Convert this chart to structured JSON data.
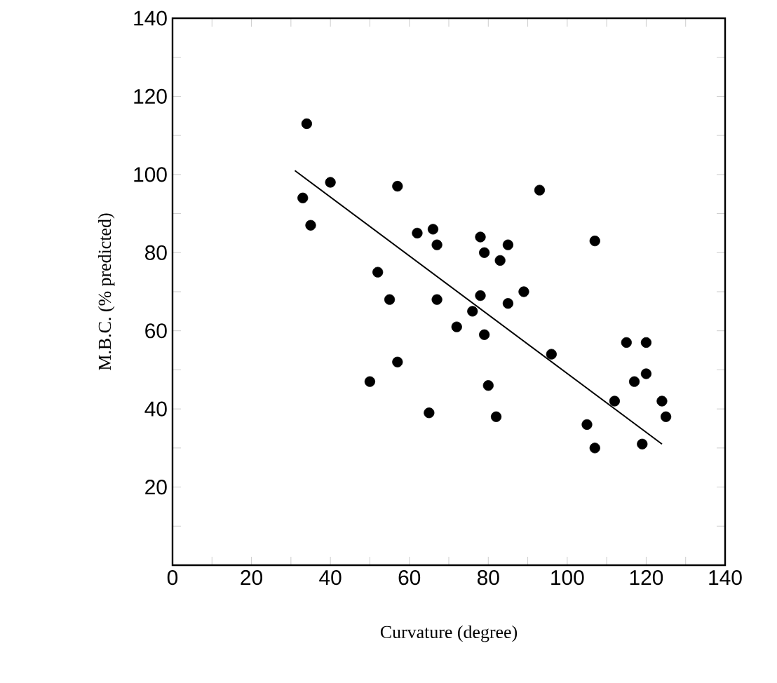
{
  "chart_data": {
    "type": "scatter",
    "xlabel": "Curvature (degree)",
    "ylabel": "M.B.C. (% predicted)",
    "xlim": [
      0,
      140
    ],
    "ylim": [
      0,
      140
    ],
    "xticks": [
      0,
      {
        "value": 10,
        "label": null
      },
      20,
      {
        "value": 30,
        "label": null
      },
      40,
      {
        "value": 50,
        "label": null
      },
      60,
      {
        "value": 70,
        "label": null
      },
      80,
      {
        "value": 90,
        "label": null
      },
      100,
      {
        "value": 110,
        "label": null
      },
      120,
      {
        "value": 130,
        "label": null
      },
      140
    ],
    "yticks": [
      {
        "value": 10,
        "label": null
      },
      20,
      {
        "value": 30,
        "label": null
      },
      40,
      {
        "value": 50,
        "label": null
      },
      60,
      {
        "value": 70,
        "label": null
      },
      80,
      {
        "value": 90,
        "label": null
      },
      100,
      {
        "value": 110,
        "label": null
      },
      120,
      {
        "value": 130,
        "label": null
      },
      140
    ],
    "grid": false,
    "series": [
      {
        "color": "#000000",
        "marker": "circle",
        "x": [
          34,
          33,
          35,
          40,
          57,
          52,
          55,
          50,
          57,
          62,
          66,
          67,
          67,
          65,
          72,
          76,
          78,
          79,
          78,
          79,
          80,
          82,
          83,
          85,
          85,
          89,
          93,
          96,
          107,
          105,
          107,
          112,
          115,
          120,
          117,
          120,
          119,
          124,
          125
        ],
        "values": [
          113,
          94,
          87,
          98,
          97,
          75,
          68,
          47,
          52,
          85,
          86,
          82,
          68,
          39,
          61,
          65,
          84,
          80,
          69,
          59,
          46,
          38,
          78,
          82,
          67,
          70,
          96,
          54,
          83,
          36,
          30,
          42,
          57,
          57,
          47,
          49,
          31,
          42,
          38
        ]
      },
      {
        "type": "line",
        "color": "#000000",
        "x": [
          31,
          124
        ],
        "values": [
          101,
          31
        ]
      }
    ]
  }
}
